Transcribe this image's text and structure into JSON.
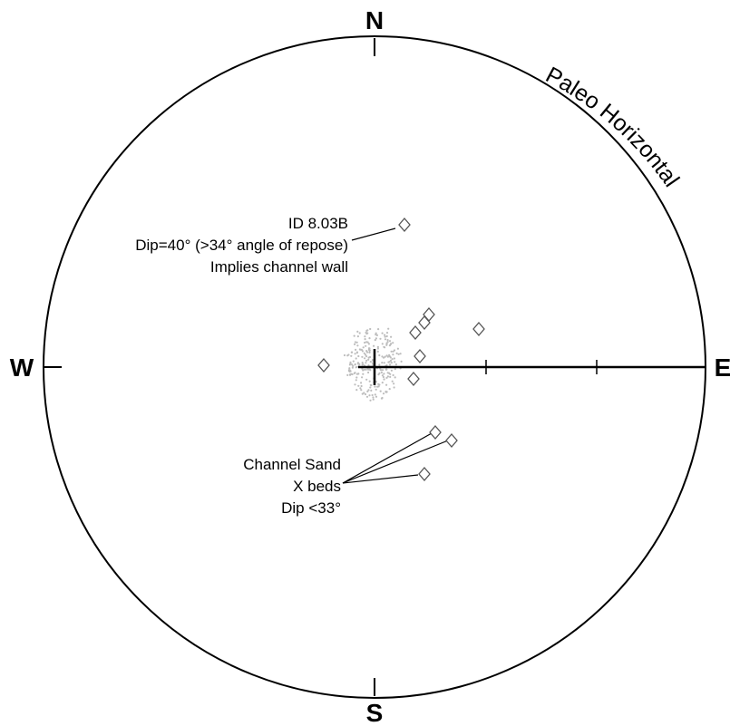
{
  "directions": {
    "north": "N",
    "south": "S",
    "east": "E",
    "west": "W"
  },
  "arc_title": "Paleo Horizontal",
  "annotation_1": {
    "lines": [
      "ID 8.03B",
      "Dip=40° (>34° angle of repose)",
      "Implies channel wall"
    ]
  },
  "annotation_2": {
    "lines": [
      "Channel Sand",
      "X beds",
      "Dip <33°"
    ]
  },
  "colors": {
    "ink": "#000000",
    "scatter": "#bdbdbd",
    "marker_stroke": "#555555"
  }
}
